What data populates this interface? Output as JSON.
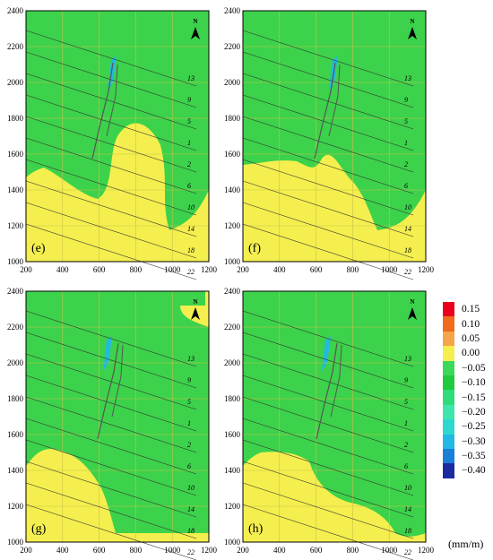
{
  "panels": [
    {
      "id": "e",
      "label": "(e)"
    },
    {
      "id": "f",
      "label": "(f)"
    },
    {
      "id": "g",
      "label": "(g)"
    },
    {
      "id": "h",
      "label": "(h)"
    }
  ],
  "x_ticks": [
    "200",
    "400",
    "600",
    "800",
    "1000",
    "1200"
  ],
  "y_ticks": [
    "2400",
    "2200",
    "2000",
    "1800",
    "1600",
    "1400",
    "1200",
    "1000"
  ],
  "north_label": "N",
  "line_labels": [
    "13",
    "9",
    "5",
    "1",
    "2",
    "6",
    "10",
    "14",
    "18",
    "22"
  ],
  "legend": {
    "items": [
      {
        "label": "0.15",
        "color": "#e8001c"
      },
      {
        "label": "0.10",
        "color": "#f26a1b"
      },
      {
        "label": "0.05",
        "color": "#f5a54a"
      },
      {
        "label": "0.00",
        "color": "#f4ef4e"
      },
      {
        "label": "−0.05",
        "color": "#3bd85a"
      },
      {
        "label": "−0.10",
        "color": "#21c93f"
      },
      {
        "label": "−0.15",
        "color": "#2fdc7c"
      },
      {
        "label": "−0.20",
        "color": "#3fe6ac"
      },
      {
        "label": "−0.25",
        "color": "#2ed8cf"
      },
      {
        "label": "−0.30",
        "color": "#22b9e4"
      },
      {
        "label": "−0.35",
        "color": "#1a7fd6"
      },
      {
        "label": "−0.40",
        "color": "#1a2ba0"
      }
    ],
    "units": "(mm/m)"
  }
}
